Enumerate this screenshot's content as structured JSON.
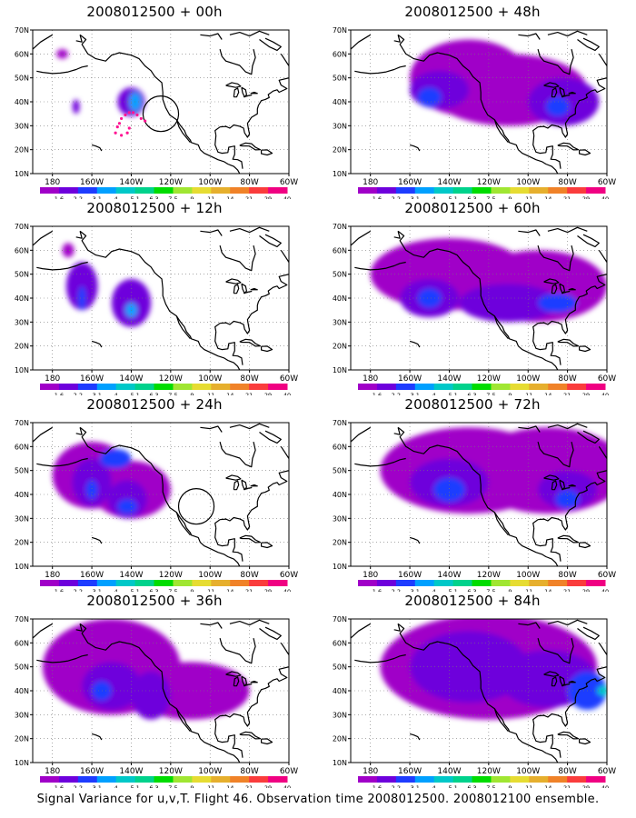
{
  "panels": [
    {
      "title": "2008012500 + 00h",
      "lead": "00h",
      "blobs": [
        {
          "lon": -168,
          "lat": 38,
          "rx": 1.8,
          "ry": 3,
          "level": 1
        },
        {
          "lon": -140,
          "lat": 40,
          "rx": 7,
          "ry": 6,
          "level": 1
        },
        {
          "lon": -138,
          "lat": 40,
          "rx": 3,
          "ry": 4,
          "level": 3
        },
        {
          "lon": -175,
          "lat": 60,
          "rx": 3,
          "ry": 2,
          "level": 0
        }
      ],
      "overlay": {
        "circle": {
          "lon": -125,
          "lat": 35,
          "r": 9
        },
        "dots": [
          [
            -133,
            32
          ],
          [
            -135,
            33
          ],
          [
            -137,
            34.5
          ],
          [
            -139,
            35.5
          ],
          [
            -141,
            35.5
          ],
          [
            -143,
            34.5
          ],
          [
            -145,
            33
          ],
          [
            -146,
            31
          ],
          [
            -147,
            29.5
          ],
          [
            -148,
            27
          ],
          [
            -145,
            26
          ],
          [
            -142,
            27
          ],
          [
            -141,
            29
          ]
        ]
      }
    },
    {
      "title": "2008012500 + 48h",
      "lead": "48h",
      "blobs": [
        {
          "lon": -130,
          "lat": 50,
          "rx": 30,
          "ry": 16,
          "level": 0
        },
        {
          "lon": -110,
          "lat": 45,
          "rx": 40,
          "ry": 15,
          "level": 0
        },
        {
          "lon": -82,
          "lat": 40,
          "rx": 18,
          "ry": 10,
          "level": 1
        },
        {
          "lon": -145,
          "lat": 45,
          "rx": 15,
          "ry": 8,
          "level": 1
        },
        {
          "lon": -150,
          "lat": 42,
          "rx": 6,
          "ry": 4,
          "level": 2
        },
        {
          "lon": -85,
          "lat": 38,
          "rx": 6,
          "ry": 4,
          "level": 2
        }
      ],
      "overlay": null
    },
    {
      "title": "2008012500 + 12h",
      "lead": "12h",
      "blobs": [
        {
          "lon": -165,
          "lat": 45,
          "rx": 8,
          "ry": 10,
          "level": 1
        },
        {
          "lon": -140,
          "lat": 38,
          "rx": 10,
          "ry": 10,
          "level": 1
        },
        {
          "lon": -165,
          "lat": 40,
          "rx": 2,
          "ry": 5,
          "level": 2
        },
        {
          "lon": -140,
          "lat": 35,
          "rx": 3,
          "ry": 3,
          "level": 3
        },
        {
          "lon": -172,
          "lat": 60,
          "rx": 3,
          "ry": 3,
          "level": 0
        }
      ],
      "overlay": null
    },
    {
      "title": "2008012500 + 60h",
      "lead": "60h",
      "blobs": [
        {
          "lon": -140,
          "lat": 50,
          "rx": 40,
          "ry": 15,
          "level": 0
        },
        {
          "lon": -95,
          "lat": 45,
          "rx": 35,
          "ry": 15,
          "level": 0
        },
        {
          "lon": -150,
          "lat": 40,
          "rx": 15,
          "ry": 8,
          "level": 1
        },
        {
          "lon": -110,
          "lat": 38,
          "rx": 25,
          "ry": 8,
          "level": 1
        },
        {
          "lon": -150,
          "lat": 40,
          "rx": 6,
          "ry": 4,
          "level": 2
        },
        {
          "lon": -85,
          "lat": 38,
          "rx": 10,
          "ry": 4,
          "level": 2
        }
      ],
      "overlay": null
    },
    {
      "title": "2008012500 + 24h",
      "lead": "24h",
      "blobs": [
        {
          "lon": -160,
          "lat": 48,
          "rx": 20,
          "ry": 14,
          "level": 0
        },
        {
          "lon": -140,
          "lat": 42,
          "rx": 20,
          "ry": 12,
          "level": 0
        },
        {
          "lon": -160,
          "lat": 45,
          "rx": 10,
          "ry": 10,
          "level": 1
        },
        {
          "lon": -142,
          "lat": 38,
          "rx": 10,
          "ry": 8,
          "level": 1
        },
        {
          "lon": -148,
          "lat": 55,
          "rx": 8,
          "ry": 4,
          "level": 2
        },
        {
          "lon": -160,
          "lat": 42,
          "rx": 3,
          "ry": 4,
          "level": 2
        },
        {
          "lon": -142,
          "lat": 35,
          "rx": 5,
          "ry": 3,
          "level": 2
        }
      ],
      "overlay": {
        "circle": {
          "lon": -107,
          "lat": 35,
          "r": 9
        },
        "dots": []
      }
    },
    {
      "title": "2008012500 + 72h",
      "lead": "72h",
      "blobs": [
        {
          "lon": -130,
          "lat": 50,
          "rx": 45,
          "ry": 18,
          "level": 0
        },
        {
          "lon": -90,
          "lat": 50,
          "rx": 40,
          "ry": 18,
          "level": 0
        },
        {
          "lon": -140,
          "lat": 45,
          "rx": 20,
          "ry": 10,
          "level": 1
        },
        {
          "lon": -80,
          "lat": 42,
          "rx": 15,
          "ry": 8,
          "level": 1
        },
        {
          "lon": -140,
          "lat": 42,
          "rx": 8,
          "ry": 5,
          "level": 2
        },
        {
          "lon": -80,
          "lat": 38,
          "rx": 6,
          "ry": 4,
          "level": 2
        }
      ],
      "overlay": null
    },
    {
      "title": "2008012500 + 36h",
      "lead": "36h",
      "blobs": [
        {
          "lon": -150,
          "lat": 50,
          "rx": 35,
          "ry": 20,
          "level": 0
        },
        {
          "lon": -110,
          "lat": 40,
          "rx": 30,
          "ry": 12,
          "level": 0
        },
        {
          "lon": -150,
          "lat": 42,
          "rx": 15,
          "ry": 10,
          "level": 1
        },
        {
          "lon": -130,
          "lat": 38,
          "rx": 10,
          "ry": 10,
          "level": 1
        },
        {
          "lon": -155,
          "lat": 40,
          "rx": 5,
          "ry": 4,
          "level": 2
        }
      ],
      "overlay": null
    },
    {
      "title": "2008012500 + 84h",
      "lead": "84h",
      "blobs": [
        {
          "lon": -120,
          "lat": 50,
          "rx": 55,
          "ry": 22,
          "level": 0
        },
        {
          "lon": -130,
          "lat": 50,
          "rx": 30,
          "ry": 15,
          "level": 1
        },
        {
          "lon": -90,
          "lat": 45,
          "rx": 25,
          "ry": 12,
          "level": 1
        },
        {
          "lon": -70,
          "lat": 40,
          "rx": 10,
          "ry": 8,
          "level": 2
        },
        {
          "lon": -62,
          "lat": 40,
          "rx": 3,
          "ry": 2,
          "level": 4
        }
      ],
      "overlay": null
    }
  ],
  "axes": {
    "lon_range": [
      -190,
      -60
    ],
    "lat_range": [
      10,
      70
    ],
    "x_ticks": [
      {
        "lon": -180,
        "label": "180"
      },
      {
        "lon": -160,
        "label": "160W"
      },
      {
        "lon": -140,
        "label": "140W"
      },
      {
        "lon": -120,
        "label": "120W"
      },
      {
        "lon": -100,
        "label": "100W"
      },
      {
        "lon": -80,
        "label": "80W"
      },
      {
        "lon": -60,
        "label": "60W"
      }
    ],
    "y_ticks": [
      {
        "lat": 10,
        "label": "10N"
      },
      {
        "lat": 20,
        "label": "20N"
      },
      {
        "lat": 30,
        "label": "30N"
      },
      {
        "lat": 40,
        "label": "40N"
      },
      {
        "lat": 50,
        "label": "50N"
      },
      {
        "lat": 60,
        "label": "60N"
      },
      {
        "lat": 70,
        "label": "70N"
      }
    ]
  },
  "colorbar": {
    "labels": [
      "1.6",
      "2.2",
      "3.1",
      "4",
      "5.1",
      "6.3",
      "7.5",
      "9",
      "11",
      "14",
      "21",
      "29",
      "40"
    ],
    "colors": [
      "#a000c8",
      "#6e00dc",
      "#1e3cff",
      "#00a0ff",
      "#00c8c8",
      "#00d28c",
      "#00dc00",
      "#a0e632",
      "#e6dc32",
      "#e6af2d",
      "#f08228",
      "#fa3c3c",
      "#f00082"
    ]
  },
  "colors": {
    "land_outline": "#000000",
    "grid": "#777777",
    "dot_track": "#ff1493",
    "circle": "#000000"
  },
  "footer": "Signal Variance for u,v,T. Flight 46. Observation time 2008012500. 2008012100 ensemble."
}
